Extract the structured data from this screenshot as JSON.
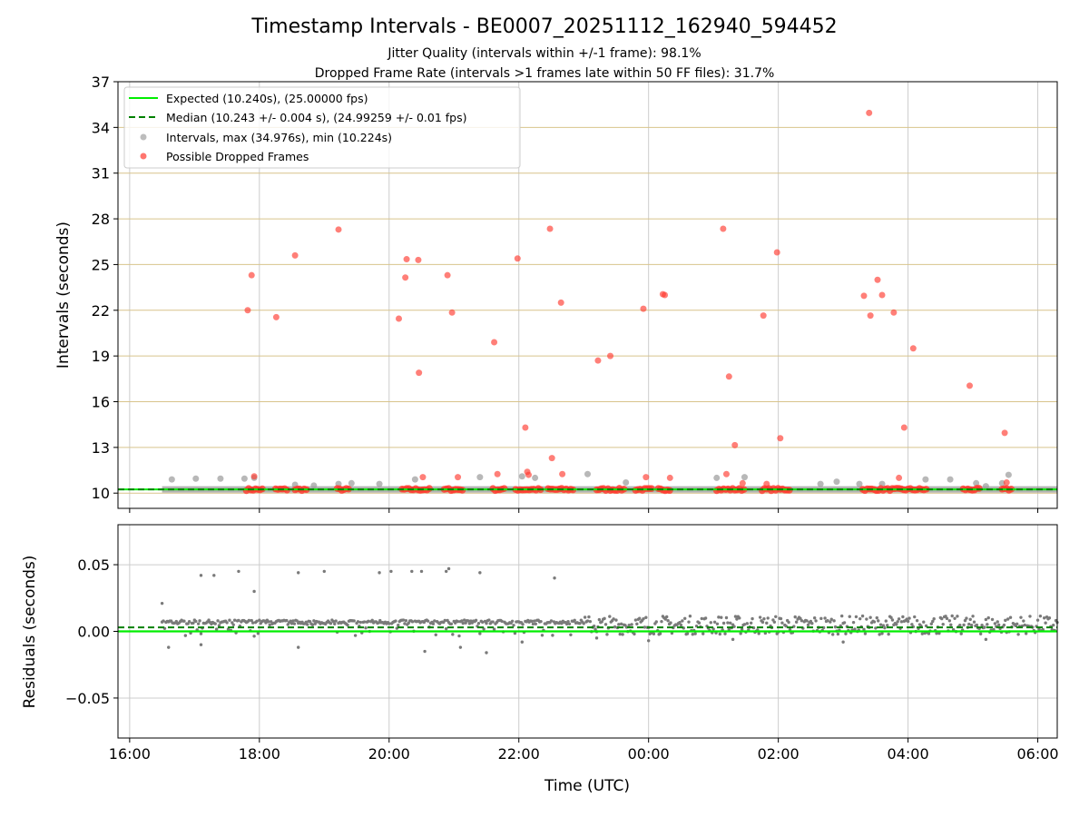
{
  "chart_data": {
    "type": "scatter",
    "title": "Timestamp Intervals - BE0007_20251112_162940_594452",
    "subtitle_1": "Jitter Quality (intervals within +/-1 frame): 98.1%",
    "subtitle_2": "Dropped Frame Rate (intervals >1 frames late within 50 FF files): 31.7%",
    "xlabel": "Time (UTC)",
    "x_unit": "hours since 16:00 UTC",
    "xlim": [
      -0.18,
      14.3
    ],
    "x_tick_values": [
      0,
      2,
      4,
      6,
      8,
      10,
      12,
      14
    ],
    "x_tick_labels": [
      "16:00",
      "18:00",
      "20:00",
      "22:00",
      "00:00",
      "02:00",
      "04:00",
      "06:00"
    ],
    "top_panel": {
      "ylabel": "Intervals (seconds)",
      "ylim": [
        9.0,
        37.0
      ],
      "y_ticks": [
        "10",
        "13",
        "16",
        "19",
        "22",
        "25",
        "28",
        "31",
        "34",
        "37"
      ],
      "expected_interval": 10.24,
      "median_interval": 10.243,
      "legend": {
        "location": "top-left",
        "entries": [
          "Expected (10.240s), (25.00000 fps)",
          "Median (10.243 +/- 0.004 s), (24.99259 +/- 0.01 fps)",
          "Intervals, max (34.976s), min (10.224s)",
          "Possible Dropped Frames"
        ]
      },
      "baseline_range": [
        0.5,
        14.3
      ],
      "intervals_gray": [
        [
          0.65,
          10.9
        ],
        [
          1.02,
          10.95
        ],
        [
          1.4,
          10.95
        ],
        [
          1.77,
          10.95
        ],
        [
          1.92,
          11.0
        ],
        [
          2.55,
          10.55
        ],
        [
          2.84,
          10.5
        ],
        [
          3.22,
          10.6
        ],
        [
          3.42,
          10.65
        ],
        [
          3.85,
          10.6
        ],
        [
          4.4,
          10.9
        ],
        [
          5.4,
          11.05
        ],
        [
          6.05,
          11.1
        ],
        [
          6.25,
          11.0
        ],
        [
          7.06,
          11.25
        ],
        [
          7.65,
          10.7
        ],
        [
          9.05,
          11.0
        ],
        [
          9.48,
          11.05
        ],
        [
          10.65,
          10.6
        ],
        [
          10.9,
          10.75
        ],
        [
          11.25,
          10.6
        ],
        [
          11.6,
          10.6
        ],
        [
          12.27,
          10.9
        ],
        [
          12.65,
          10.9
        ],
        [
          13.05,
          10.65
        ],
        [
          13.2,
          10.45
        ],
        [
          13.45,
          10.65
        ],
        [
          13.55,
          11.2
        ]
      ],
      "dropped_frames": [
        [
          1.82,
          22.0
        ],
        [
          1.88,
          24.3
        ],
        [
          1.92,
          11.1
        ],
        [
          2.26,
          21.55
        ],
        [
          2.55,
          25.6
        ],
        [
          3.22,
          27.3
        ],
        [
          4.15,
          21.45
        ],
        [
          4.25,
          24.15
        ],
        [
          4.27,
          25.35
        ],
        [
          4.45,
          25.3
        ],
        [
          4.46,
          17.9
        ],
        [
          4.52,
          11.05
        ],
        [
          4.9,
          24.3
        ],
        [
          4.97,
          21.85
        ],
        [
          5.06,
          11.05
        ],
        [
          5.62,
          19.9
        ],
        [
          5.67,
          11.25
        ],
        [
          5.98,
          25.4
        ],
        [
          6.1,
          14.3
        ],
        [
          6.13,
          11.4
        ],
        [
          6.15,
          11.2
        ],
        [
          6.48,
          27.35
        ],
        [
          6.51,
          12.3
        ],
        [
          6.65,
          22.5
        ],
        [
          6.67,
          11.25
        ],
        [
          7.22,
          18.7
        ],
        [
          7.41,
          19.0
        ],
        [
          7.92,
          22.1
        ],
        [
          7.96,
          11.05
        ],
        [
          8.22,
          23.05
        ],
        [
          8.25,
          23.0
        ],
        [
          8.33,
          11.0
        ],
        [
          9.15,
          27.35
        ],
        [
          9.2,
          11.25
        ],
        [
          9.24,
          17.65
        ],
        [
          9.33,
          13.15
        ],
        [
          9.45,
          10.65
        ],
        [
          9.77,
          21.65
        ],
        [
          9.82,
          10.6
        ],
        [
          9.98,
          25.8
        ],
        [
          10.03,
          13.6
        ],
        [
          11.32,
          22.95
        ],
        [
          11.4,
          34.95
        ],
        [
          11.42,
          21.65
        ],
        [
          11.53,
          24.0
        ],
        [
          11.6,
          23.0
        ],
        [
          11.78,
          21.85
        ],
        [
          11.86,
          11.0
        ],
        [
          11.94,
          14.3
        ],
        [
          12.08,
          19.5
        ],
        [
          12.95,
          17.05
        ],
        [
          13.49,
          13.95
        ],
        [
          13.52,
          10.7
        ]
      ],
      "dropped_clusters": [
        [
          1.8,
          2.05
        ],
        [
          2.25,
          2.45
        ],
        [
          2.55,
          2.75
        ],
        [
          3.2,
          3.4
        ],
        [
          4.2,
          4.65
        ],
        [
          4.85,
          5.15
        ],
        [
          5.6,
          5.8
        ],
        [
          5.95,
          6.35
        ],
        [
          6.45,
          6.85
        ],
        [
          7.2,
          7.65
        ],
        [
          7.8,
          8.05
        ],
        [
          8.15,
          8.35
        ],
        [
          9.05,
          9.5
        ],
        [
          9.75,
          10.2
        ],
        [
          11.3,
          12.3
        ],
        [
          12.85,
          13.1
        ],
        [
          13.45,
          13.6
        ]
      ]
    },
    "bottom_panel": {
      "ylabel": "Residuals (seconds)",
      "ylim": [
        -0.08,
        0.08
      ],
      "y_ticks": [
        "0.05",
        "0.00",
        "−0.05"
      ],
      "y_tick_values": [
        0.05,
        0.0,
        -0.05
      ],
      "expected_residual": 0.0,
      "median_residual": 0.003,
      "outliers": [
        [
          0.5,
          0.021
        ],
        [
          1.1,
          0.042
        ],
        [
          1.3,
          0.042
        ],
        [
          1.68,
          0.045
        ],
        [
          1.92,
          0.03
        ],
        [
          2.6,
          0.044
        ],
        [
          3.0,
          0.045
        ],
        [
          3.85,
          0.044
        ],
        [
          4.03,
          0.045
        ],
        [
          4.35,
          0.045
        ],
        [
          4.5,
          0.045
        ],
        [
          4.88,
          0.045
        ],
        [
          4.92,
          0.047
        ],
        [
          5.4,
          0.044
        ],
        [
          6.55,
          0.04
        ],
        [
          0.6,
          -0.012
        ],
        [
          1.1,
          -0.01
        ],
        [
          2.6,
          -0.012
        ],
        [
          4.55,
          -0.015
        ],
        [
          5.1,
          -0.012
        ],
        [
          5.5,
          -0.016
        ],
        [
          6.05,
          -0.008
        ],
        [
          7.2,
          -0.005
        ],
        [
          8.0,
          -0.007
        ],
        [
          9.3,
          -0.006
        ],
        [
          11.0,
          -0.008
        ],
        [
          13.2,
          -0.006
        ]
      ]
    },
    "colors": {
      "expected": "#00ee00",
      "median": "#008000",
      "intervals": "#9a9a9a",
      "residuals": "#7a7a7a",
      "dropped": "#ff3b30",
      "grid": "#cccccc",
      "hgrid_top": "#d8c48c"
    }
  }
}
